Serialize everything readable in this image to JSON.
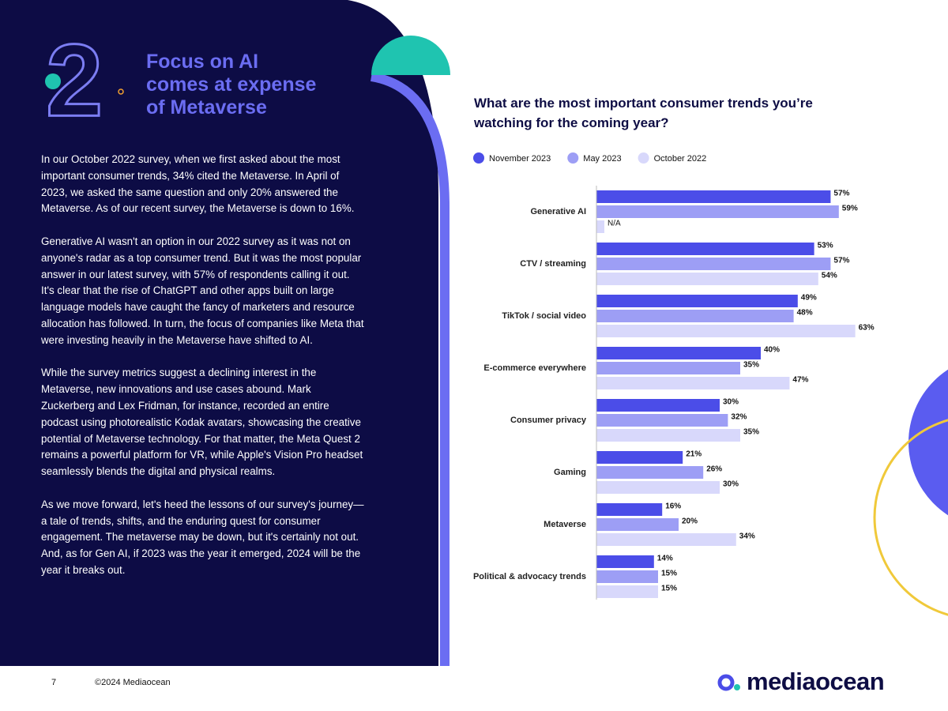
{
  "header": {
    "number": "2",
    "title": [
      "Focus on AI",
      "comes at expense",
      "of Metaverse"
    ]
  },
  "body": [
    "In our October 2022 survey, when we first asked about the most important consumer trends, 34% cited the Metaverse. In April of 2023, we asked the same question and only 20% answered the Metaverse. As of our recent survey, the Metaverse is down to 16%.",
    "Generative AI wasn't an option in our 2022 survey as it was not on anyone's radar as a top consumer trend. But it was the most popular answer in our latest survey, with 57% of respondents calling it out. It's clear that the rise of ChatGPT and other apps built on large language models have caught the fancy of marketers and resource allocation has followed. In turn, the focus of companies like Meta that were investing heavily in the Metaverse have shifted to AI.",
    "While the survey metrics suggest a declining interest in the Metaverse, new innovations and use cases abound. Mark Zuckerberg and Lex Fridman, for instance, recorded an entire podcast using photorealistic Kodak avatars, showcasing the creative potential of Metaverse technology. For that matter, the Meta Quest 2 remains a powerful platform for VR, while Apple's Vision Pro headset seamlessly blends the digital and physical realms.",
    "As we move forward, let's heed the lessons of our survey's journey—a tale of trends, shifts, and the enduring quest for consumer engagement. The metaverse may be down, but it's certainly not out. And, as for Gen AI, if 2023 was the year it emerged, 2024 will be the year it breaks out."
  ],
  "footer": {
    "page": "7",
    "copyright": "©2024 Mediaocean",
    "logo": "mediaocean"
  },
  "chart_data": {
    "type": "hbar",
    "title": "What are the most important consumer trends you’re watching for the coming year?",
    "categories": [
      "Generative AI",
      "CTV / streaming",
      "TikTok / social video",
      "E-commerce everywhere",
      "Consumer privacy",
      "Gaming",
      "Metaverse",
      "Political & advocacy trends"
    ],
    "series": [
      {
        "name": "November 2023",
        "color": "#4b4de8",
        "values": [
          57,
          53,
          49,
          40,
          30,
          21,
          16,
          14
        ],
        "value_labels": [
          "57%",
          "53%",
          "49%",
          "40%",
          "30%",
          "21%",
          "16%",
          "14%"
        ]
      },
      {
        "name": "May 2023",
        "color": "#9d9ef5",
        "values": [
          59,
          57,
          48,
          35,
          32,
          26,
          20,
          15
        ],
        "value_labels": [
          "59%",
          "57%",
          "48%",
          "35%",
          "32%",
          "26%",
          "20%",
          "15%"
        ]
      },
      {
        "name": "October 2022",
        "color": "#d8d8fb",
        "values": [
          null,
          54,
          63,
          47,
          35,
          30,
          34,
          15
        ],
        "value_labels": [
          "N/A",
          "54%",
          "63%",
          "47%",
          "35%",
          "30%",
          "34%",
          "15%"
        ]
      }
    ]
  }
}
